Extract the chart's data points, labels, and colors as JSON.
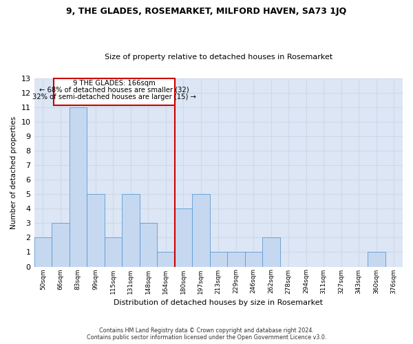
{
  "title1": "9, THE GLADES, ROSEMARKET, MILFORD HAVEN, SA73 1JQ",
  "title2": "Size of property relative to detached houses in Rosemarket",
  "xlabel": "Distribution of detached houses by size in Rosemarket",
  "ylabel": "Number of detached properties",
  "footer1": "Contains HM Land Registry data © Crown copyright and database right 2024.",
  "footer2": "Contains public sector information licensed under the Open Government Licence v3.0.",
  "annotation_line1": "9 THE GLADES: 166sqm",
  "annotation_line2": "← 68% of detached houses are smaller (32)",
  "annotation_line3": "32% of semi-detached houses are larger (15) →",
  "bar_color": "#c5d8f0",
  "bar_edge_color": "#5b9bd5",
  "ref_line_color": "#cc0000",
  "categories": [
    "50sqm",
    "66sqm",
    "83sqm",
    "99sqm",
    "115sqm",
    "131sqm",
    "148sqm",
    "164sqm",
    "180sqm",
    "197sqm",
    "213sqm",
    "229sqm",
    "246sqm",
    "262sqm",
    "278sqm",
    "294sqm",
    "311sqm",
    "327sqm",
    "343sqm",
    "360sqm",
    "376sqm"
  ],
  "values": [
    2,
    3,
    11,
    5,
    2,
    5,
    3,
    1,
    4,
    5,
    1,
    1,
    1,
    2,
    0,
    0,
    0,
    0,
    0,
    1,
    0
  ],
  "ylim": [
    0,
    13
  ],
  "yticks": [
    0,
    1,
    2,
    3,
    4,
    5,
    6,
    7,
    8,
    9,
    10,
    11,
    12,
    13
  ],
  "grid_color": "#d0d8e8",
  "background_color": "#dce6f5"
}
